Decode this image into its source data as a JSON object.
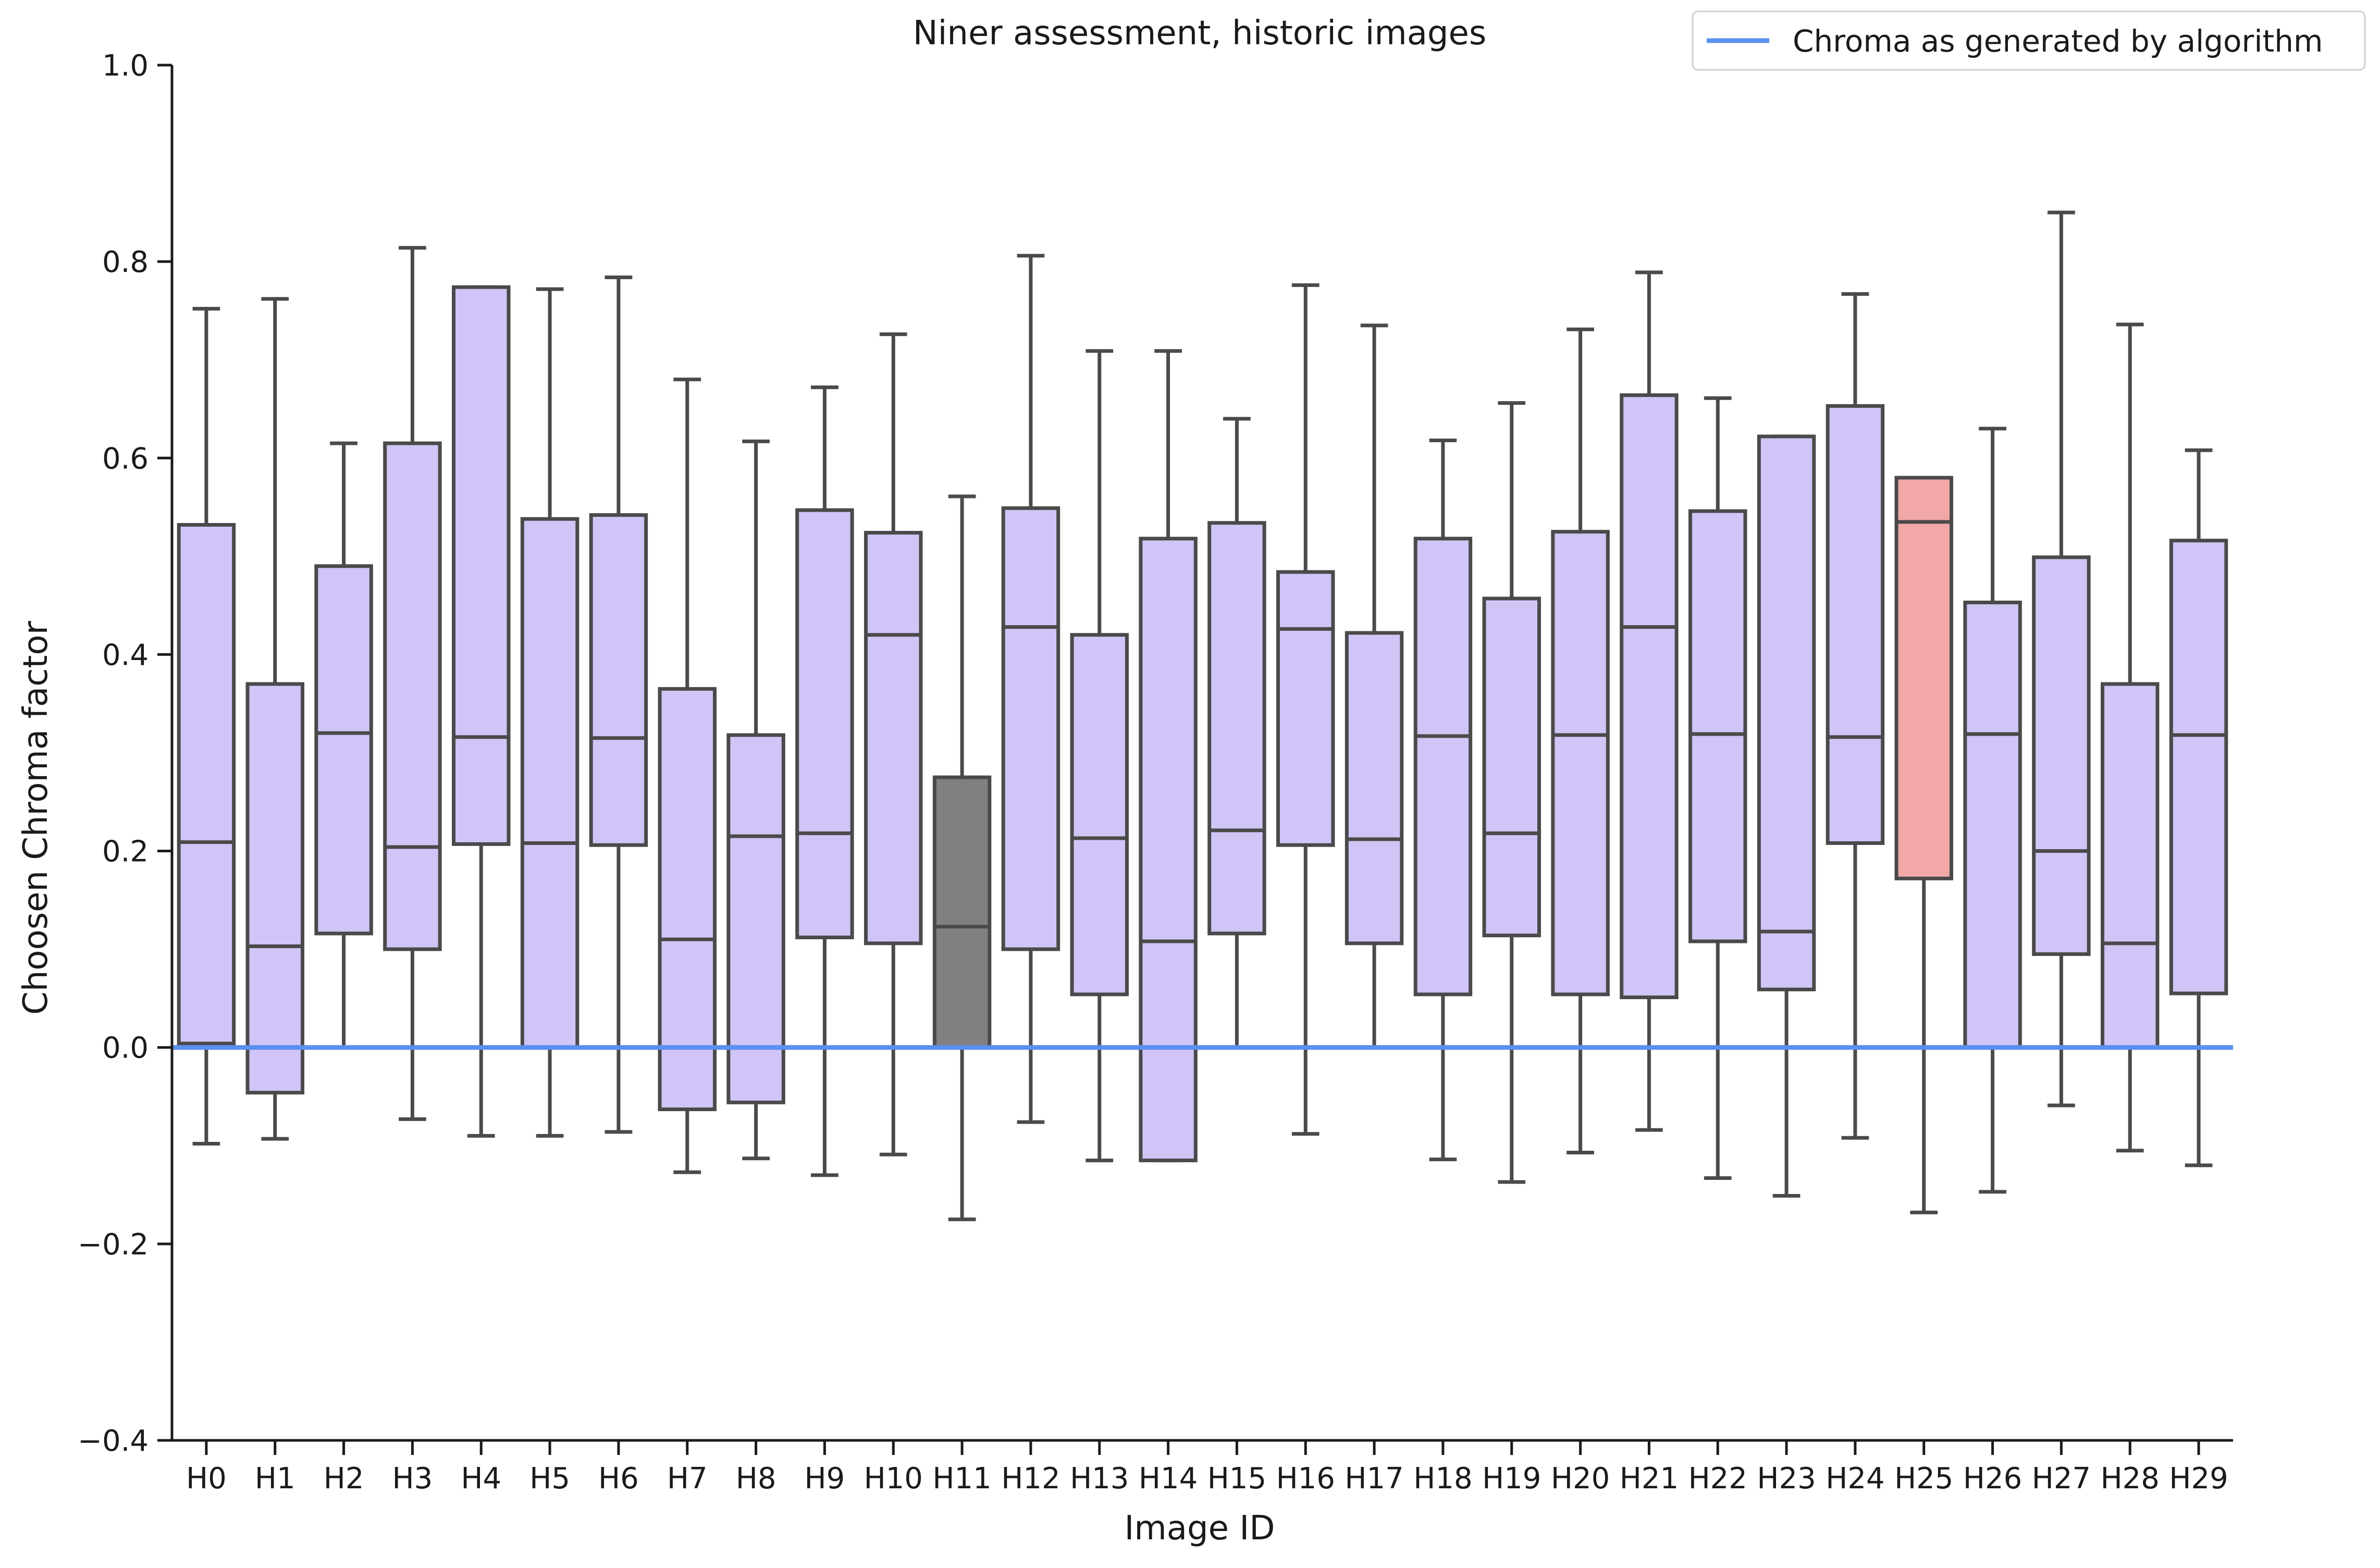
{
  "chart_data": {
    "type": "box",
    "title": "Niner assessment, historic images",
    "xlabel": "Image ID",
    "ylabel": "Choosen Chroma factor",
    "ylim": [
      -0.4,
      1.0
    ],
    "yticks": [
      -0.4,
      -0.2,
      0.0,
      0.2,
      0.4,
      0.6,
      0.8,
      1.0
    ],
    "ytick_labels": [
      "−0.4",
      "−0.2",
      "0.0",
      "0.2",
      "0.4",
      "0.6",
      "0.8",
      "1.0"
    ],
    "categories": [
      "H0",
      "H1",
      "H2",
      "H3",
      "H4",
      "H5",
      "H6",
      "H7",
      "H8",
      "H9",
      "H10",
      "H11",
      "H12",
      "H13",
      "H14",
      "H15",
      "H16",
      "H17",
      "H18",
      "H19",
      "H20",
      "H21",
      "H22",
      "H23",
      "H24",
      "H25",
      "H26",
      "H27",
      "H28",
      "H29"
    ],
    "boxes": [
      {
        "whislo": -0.098,
        "q1": 0.004,
        "med": 0.209,
        "q3": 0.532,
        "whishi": 0.752
      },
      {
        "whislo": -0.093,
        "q1": -0.046,
        "med": 0.103,
        "q3": 0.37,
        "whishi": 0.762
      },
      {
        "whislo": 0.0,
        "q1": 0.116,
        "med": 0.32,
        "q3": 0.49,
        "whishi": 0.615
      },
      {
        "whislo": -0.073,
        "q1": 0.1,
        "med": 0.204,
        "q3": 0.615,
        "whishi": 0.814
      },
      {
        "whislo": -0.09,
        "q1": 0.207,
        "med": 0.316,
        "q3": 0.774,
        "whishi": 0.774
      },
      {
        "whislo": -0.09,
        "q1": 0.0,
        "med": 0.208,
        "q3": 0.538,
        "whishi": 0.772
      },
      {
        "whislo": -0.086,
        "q1": 0.206,
        "med": 0.315,
        "q3": 0.542,
        "whishi": 0.784
      },
      {
        "whislo": -0.127,
        "q1": -0.063,
        "med": 0.11,
        "q3": 0.365,
        "whishi": 0.68
      },
      {
        "whislo": -0.113,
        "q1": -0.056,
        "med": 0.215,
        "q3": 0.318,
        "whishi": 0.617
      },
      {
        "whislo": -0.13,
        "q1": 0.112,
        "med": 0.218,
        "q3": 0.547,
        "whishi": 0.672
      },
      {
        "whislo": -0.109,
        "q1": 0.106,
        "med": 0.42,
        "q3": 0.524,
        "whishi": 0.726
      },
      {
        "whislo": -0.175,
        "q1": 0.0,
        "med": 0.123,
        "q3": 0.275,
        "whishi": 0.561
      },
      {
        "whislo": -0.076,
        "q1": 0.1,
        "med": 0.428,
        "q3": 0.549,
        "whishi": 0.806
      },
      {
        "whislo": -0.115,
        "q1": 0.054,
        "med": 0.213,
        "q3": 0.42,
        "whishi": 0.709
      },
      {
        "whislo": -0.115,
        "q1": -0.115,
        "med": 0.108,
        "q3": 0.518,
        "whishi": 0.709
      },
      {
        "whislo": 0.0,
        "q1": 0.116,
        "med": 0.221,
        "q3": 0.534,
        "whishi": 0.64
      },
      {
        "whislo": -0.088,
        "q1": 0.206,
        "med": 0.426,
        "q3": 0.484,
        "whishi": 0.776
      },
      {
        "whislo": 0.0,
        "q1": 0.106,
        "med": 0.212,
        "q3": 0.422,
        "whishi": 0.735
      },
      {
        "whislo": -0.114,
        "q1": 0.054,
        "med": 0.317,
        "q3": 0.518,
        "whishi": 0.618
      },
      {
        "whislo": -0.137,
        "q1": 0.114,
        "med": 0.218,
        "q3": 0.457,
        "whishi": 0.656
      },
      {
        "whislo": -0.107,
        "q1": 0.054,
        "med": 0.318,
        "q3": 0.525,
        "whishi": 0.731
      },
      {
        "whislo": -0.084,
        "q1": 0.051,
        "med": 0.428,
        "q3": 0.664,
        "whishi": 0.789
      },
      {
        "whislo": -0.133,
        "q1": 0.108,
        "med": 0.319,
        "q3": 0.546,
        "whishi": 0.661
      },
      {
        "whislo": -0.151,
        "q1": 0.059,
        "med": 0.118,
        "q3": 0.622,
        "whishi": 0.622
      },
      {
        "whislo": -0.092,
        "q1": 0.208,
        "med": 0.316,
        "q3": 0.653,
        "whishi": 0.767
      },
      {
        "whislo": -0.168,
        "q1": 0.172,
        "med": 0.535,
        "q3": 0.58,
        "whishi": 0.58
      },
      {
        "whislo": -0.147,
        "q1": 0.0,
        "med": 0.319,
        "q3": 0.453,
        "whishi": 0.63
      },
      {
        "whislo": -0.059,
        "q1": 0.095,
        "med": 0.2,
        "q3": 0.499,
        "whishi": 0.85
      },
      {
        "whislo": -0.105,
        "q1": 0.0,
        "med": 0.106,
        "q3": 0.37,
        "whishi": 0.736
      },
      {
        "whislo": -0.12,
        "q1": 0.055,
        "med": 0.318,
        "q3": 0.516,
        "whishi": 0.608
      }
    ],
    "box_colors": {
      "default": "#d1c4f6",
      "H11": "#808080",
      "H25": "#f1a8a7"
    },
    "edge_color": "#4a4a4a",
    "reference_line": {
      "label": "Chroma as generated by algorithm",
      "y": 0.0,
      "color": "#5b8ff0"
    },
    "legend": {
      "position": "upper-right",
      "entries": [
        "Chroma as generated by algorithm"
      ]
    },
    "grid": false
  }
}
